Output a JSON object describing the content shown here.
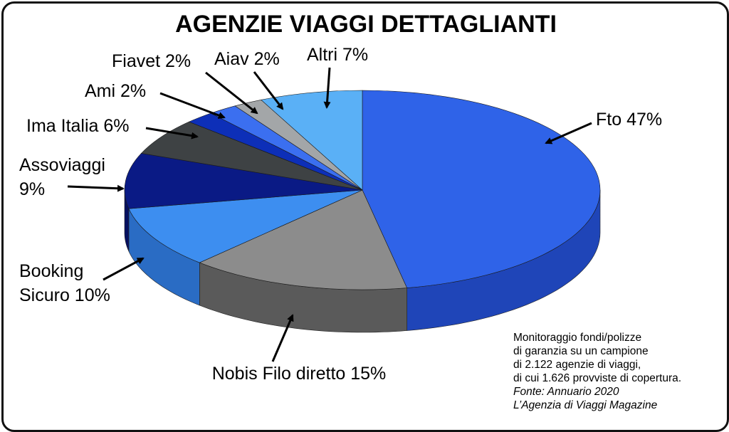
{
  "chart_data": {
    "type": "pie",
    "title": "AGENZIE VIAGGI DETTAGLIANTI",
    "slices": [
      {
        "label": "Fto",
        "value": 47,
        "display": "Fto 47%",
        "color": "#2f63e8",
        "side": "#1f45b8"
      },
      {
        "label": "Nobis Filo diretto",
        "value": 15,
        "display": "Nobis Filo diretto 15%",
        "color": "#8c8c8c",
        "side": "#5a5a5a"
      },
      {
        "label": "Booking Sicuro",
        "value": 10,
        "display_lines": [
          "Booking",
          "Sicuro 10%"
        ],
        "color": "#3d8ef0",
        "side": "#2a6cc4"
      },
      {
        "label": "Assoviaggi",
        "value": 9,
        "display_lines": [
          "Assoviaggi",
          "9%"
        ],
        "color": "#0a1a85",
        "side": "#061060"
      },
      {
        "label": "Ima Italia",
        "value": 6,
        "display": "Ima Italia 6%",
        "color": "#3e4244",
        "side": "#26292b"
      },
      {
        "label": "Ami",
        "value": 2,
        "display": "Ami 2%",
        "color": "#0d2fb8",
        "side": "#082090"
      },
      {
        "label": "Fiavet",
        "value": 2,
        "display": "Fiavet 2%",
        "color": "#3b6ff0",
        "side": "#2a52c0"
      },
      {
        "label": "Aiav",
        "value": 2,
        "display": "Aiav 2%",
        "color": "#a3a6a8",
        "side": "#7a7d80"
      },
      {
        "label": "Altri",
        "value": 7,
        "display": "Altri 7%",
        "color": "#5ab0f6",
        "side": "#3c88d0"
      }
    ]
  },
  "note": {
    "lines": [
      "Monitoraggio fondi/polizze",
      "di garanzia su un campione",
      "di 2.122 agenzie di viaggi,",
      "di cui 1.626 provviste di copertura."
    ],
    "source_lines": [
      "Fonte: Annuario 2020",
      "L’Agenzia di Viaggi Magazine"
    ]
  }
}
